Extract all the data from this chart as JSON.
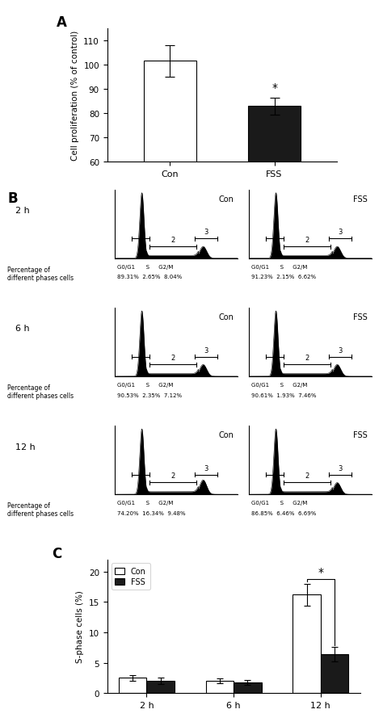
{
  "panel_A": {
    "categories": [
      "Con",
      "FSS"
    ],
    "values": [
      101.5,
      83.0
    ],
    "errors": [
      6.5,
      3.5
    ],
    "colors": [
      "white",
      "#1a1a1a"
    ],
    "ylabel": "Cell proliferation (% of control)",
    "ylim": [
      60,
      115
    ],
    "yticks": [
      60,
      70,
      80,
      90,
      100,
      110
    ],
    "sig_label": "*"
  },
  "panel_B": {
    "rows": [
      {
        "time": "2 h",
        "con": {
          "label": "Con",
          "g0g1": "89.31%",
          "s": "2.65%",
          "g2m": "8.04%"
        },
        "fss": {
          "label": "FSS",
          "g0g1": "91.23%",
          "s": "2.15%",
          "g2m": "6.62%"
        }
      },
      {
        "time": "6 h",
        "con": {
          "label": "Con",
          "g0g1": "90.53%",
          "s": "2.35%",
          "g2m": "7.12%"
        },
        "fss": {
          "label": "FSS",
          "g0g1": "90.61%",
          "s": "1.93%",
          "g2m": "7.46%"
        }
      },
      {
        "time": "12 h",
        "con": {
          "label": "Con",
          "g0g1": "74.20%",
          "s": "16.34%",
          "g2m": "9.48%"
        },
        "fss": {
          "label": "FSS",
          "g0g1": "86.85%",
          "s": "6.46%",
          "g2m": "6.69%"
        }
      }
    ]
  },
  "panel_C": {
    "groups": [
      "2 h",
      "6 h",
      "12 h"
    ],
    "con_values": [
      2.5,
      2.0,
      16.2
    ],
    "fss_values": [
      2.0,
      1.8,
      6.4
    ],
    "con_errors": [
      0.5,
      0.4,
      1.8
    ],
    "fss_errors": [
      0.5,
      0.4,
      1.2
    ],
    "ylabel": "S-phase cells (%)",
    "ylim": [
      0,
      22
    ],
    "yticks": [
      0,
      5,
      10,
      15,
      20
    ],
    "sig_label": "*",
    "legend_labels": [
      "Con",
      "FSS"
    ]
  }
}
